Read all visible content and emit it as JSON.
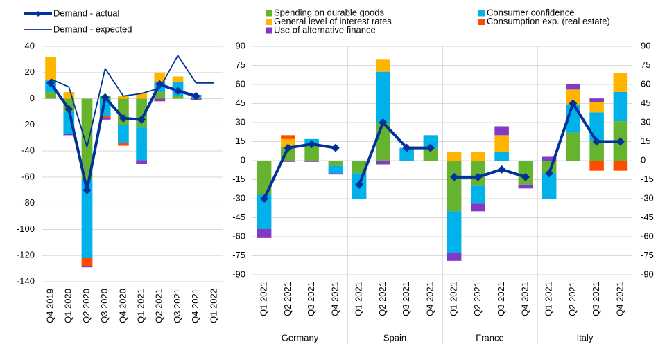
{
  "chart_data": [
    {
      "type": "bar",
      "stacked": true,
      "categories": [
        "Q4 2019",
        "Q1 2020",
        "Q2 2020",
        "Q3 2020",
        "Q4 2020",
        "Q1 2021",
        "Q2 2021",
        "Q3 2021",
        "Q4 2021",
        "Q1 2022"
      ],
      "series": [
        {
          "color": "#65b32e",
          "values": [
            5,
            -10,
            -62,
            2,
            -20,
            -22,
            5,
            2,
            1,
            null
          ]
        },
        {
          "color": "#00b1ea",
          "values": [
            9,
            -17,
            -60,
            -13,
            -14,
            -25,
            8,
            11,
            2,
            null
          ]
        },
        {
          "color": "#ffb400",
          "values": [
            18,
            5,
            0,
            0,
            2,
            4,
            7,
            4,
            0,
            null
          ]
        },
        {
          "color": "#ff4b00",
          "values": [
            0,
            0,
            -6,
            -2,
            -2,
            0,
            0,
            0,
            0,
            null
          ]
        },
        {
          "color": "#8139c6",
          "values": [
            0,
            -1,
            -1,
            -1,
            0,
            -3,
            -2,
            0,
            -1,
            null
          ]
        },
        {
          "name": "Demand - actual",
          "type": "line",
          "color": "#003299",
          "linewidth": 4,
          "marker": "diamond",
          "values": [
            12,
            -8,
            -70,
            1,
            -15,
            -16,
            11,
            6,
            2,
            null
          ]
        },
        {
          "name": "Demand - expected",
          "type": "line",
          "color": "#003299",
          "linewidth": 1.8,
          "values": [
            15,
            9,
            -37,
            23,
            2,
            4,
            8,
            33,
            12,
            12
          ]
        }
      ],
      "ylim": [
        -140,
        40
      ],
      "yticks": [
        -140,
        -120,
        -100,
        -80,
        -60,
        -40,
        -20,
        0,
        20,
        40
      ],
      "grid": true,
      "legend": "top-left"
    },
    {
      "type": "bar",
      "stacked": true,
      "groups": [
        "Germany",
        "Spain",
        "France",
        "Italy"
      ],
      "categories": [
        "Q1 2021",
        "Q2 2021",
        "Q3 2021",
        "Q4 2021",
        "Q1 2021",
        "Q2 2021",
        "Q3 2021",
        "Q4 2021",
        "Q1 2021",
        "Q2 2021",
        "Q3 2021",
        "Q4 2021",
        "Q1 2021",
        "Q2 2021",
        "Q3 2021",
        "Q4 2021"
      ],
      "series": [
        {
          "name": "Spending on durable goods",
          "color": "#65b32e",
          "values": [
            -27,
            11,
            12,
            -4,
            -10,
            30,
            0,
            10,
            -40,
            -20,
            0,
            -19,
            -10,
            22,
            16,
            31
          ]
        },
        {
          "name": "Consumer confidence",
          "color": "#00b1ea",
          "values": [
            -27,
            0,
            5,
            -6,
            -20,
            40,
            10,
            10,
            -33,
            -14,
            7,
            0,
            -20,
            22,
            22,
            23
          ]
        },
        {
          "name": "General level of interest rates",
          "color": "#ffb400",
          "values": [
            0,
            6,
            0,
            0,
            0,
            10,
            0,
            0,
            7,
            7,
            13,
            0,
            0,
            12,
            8,
            15
          ]
        },
        {
          "name": "Consumption exp. (real estate)",
          "color": "#ff4b00",
          "values": [
            0,
            3,
            0,
            0,
            0,
            0,
            0,
            0,
            0,
            0,
            0,
            0,
            0,
            0,
            -8,
            -8
          ]
        },
        {
          "name": "Use of alternative finance",
          "color": "#8139c6",
          "values": [
            -7,
            -1,
            -1,
            -1,
            0,
            -3,
            0,
            0,
            -6,
            -6,
            7,
            -3,
            3,
            4,
            3,
            0
          ]
        },
        {
          "type": "line",
          "color": "#003299",
          "linewidth": 4,
          "marker": "diamond",
          "values": [
            -30,
            10,
            13,
            10,
            -19,
            30,
            10,
            10,
            -13,
            -13,
            -7,
            -13,
            -10,
            45,
            15,
            15
          ]
        }
      ],
      "ylim": [
        -90,
        90
      ],
      "yticks": [
        -90,
        -75,
        -60,
        -45,
        -30,
        -15,
        0,
        15,
        30,
        45,
        60,
        75,
        90
      ],
      "y2lim": [
        -90,
        90
      ],
      "y2ticks": [
        -90,
        -75,
        -60,
        -45,
        -30,
        -15,
        0,
        15,
        30,
        45,
        60,
        75,
        90
      ],
      "grid": true,
      "legend": "top"
    }
  ]
}
